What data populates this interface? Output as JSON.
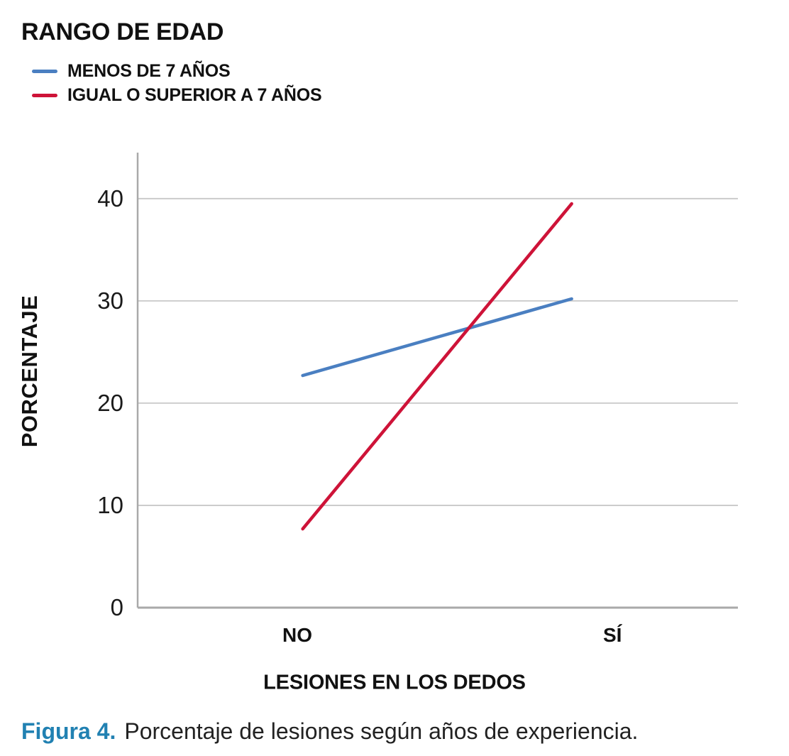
{
  "figure": {
    "caption_prefix": "Figura 4.",
    "caption_text": "Porcentaje de lesiones según años de experiencia.",
    "caption_accent_color": "#2181B2"
  },
  "chart_data": {
    "type": "line",
    "title": "",
    "legend_title": "RANGO DE EDAD",
    "legend_position": "top-left",
    "categories": [
      "NO",
      "SÍ"
    ],
    "series": [
      {
        "name": "MENOS DE 7 AÑOS",
        "color": "#4A7FC1",
        "values": [
          22.7,
          30.2
        ]
      },
      {
        "name": "IGUAL O SUPERIOR A 7 AÑOS",
        "color": "#CE1338",
        "values": [
          7.7,
          39.5
        ]
      }
    ],
    "xlabel": "LESIONES EN LOS DEDOS",
    "ylabel": "PORCENTAJE",
    "ylim": [
      0,
      44.5
    ],
    "yticks": [
      0,
      10,
      20,
      30,
      40
    ],
    "grid": true,
    "grid_color": "#C8C8C8",
    "axis_color": "#A9A9A9",
    "text_color": "#1A1A1A"
  }
}
